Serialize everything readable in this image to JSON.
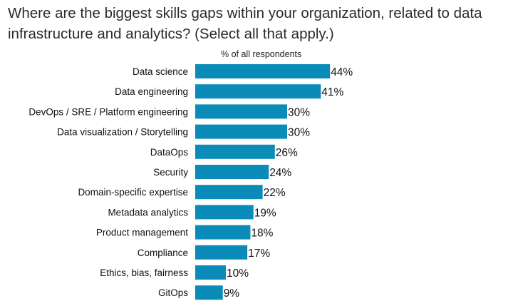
{
  "title": "Where are the biggest skills gaps within your organization, related to data infrastructure and analytics? (Select all that apply.)",
  "chart_data": {
    "type": "bar",
    "orientation": "horizontal",
    "subtitle": "% of all respondents",
    "categories": [
      "Data science",
      "Data engineering",
      "DevOps / SRE / Platform engineering",
      "Data visualization / Storytelling",
      "DataOps",
      "Security",
      "Domain-specific expertise",
      "Metadata analytics",
      "Product management",
      "Compliance",
      "Ethics, bias, fairness",
      "GitOps"
    ],
    "values": [
      44,
      41,
      30,
      30,
      26,
      24,
      22,
      19,
      18,
      17,
      10,
      9
    ],
    "value_labels": [
      "44%",
      "41%",
      "30%",
      "30%",
      "26%",
      "24%",
      "22%",
      "19%",
      "18%",
      "17%",
      "10%",
      "9%"
    ],
    "unit": "%",
    "bar_color": "#0b8bb8",
    "grid": false,
    "legend": "none"
  }
}
